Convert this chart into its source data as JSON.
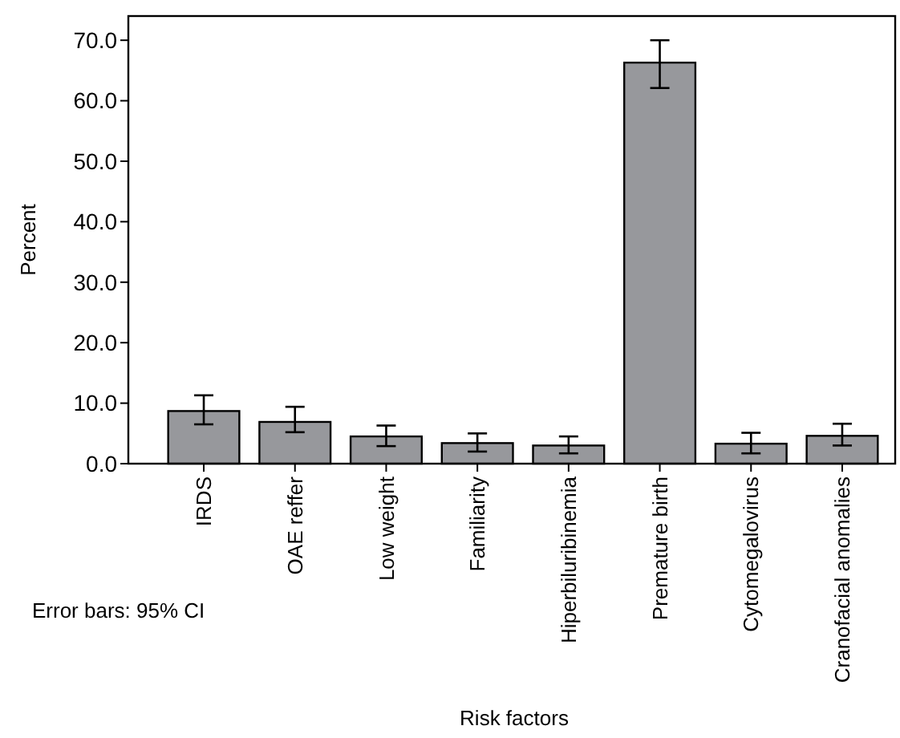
{
  "chart_data": {
    "type": "bar",
    "xlabel": "Risk factors",
    "ylabel": "Percent",
    "categories": [
      "IRDS",
      "OAE reffer",
      "Low weight",
      "Familiarity",
      "Hiperbiluribinemia",
      "Premature birth",
      "Cytomegalovirus",
      "Cranofacial anomalies"
    ],
    "values": [
      8.7,
      6.9,
      4.5,
      3.4,
      3.0,
      66.3,
      3.3,
      4.6
    ],
    "errors": [
      [
        6.5,
        11.3
      ],
      [
        5.2,
        9.4
      ],
      [
        2.9,
        6.3
      ],
      [
        2.0,
        5.0
      ],
      [
        1.7,
        4.5
      ],
      [
        62.1,
        70.0
      ],
      [
        1.7,
        5.1
      ],
      [
        3.0,
        6.6
      ]
    ],
    "color": "#97989c",
    "ylim": [
      0,
      74
    ],
    "yticks": [
      {
        "value": 0,
        "label": "0.0"
      },
      {
        "value": 10,
        "label": "10.0"
      },
      {
        "value": 20,
        "label": "20.0"
      },
      {
        "value": 30,
        "label": "30.0"
      },
      {
        "value": 40,
        "label": "40.0"
      },
      {
        "value": 50,
        "label": "50.0"
      },
      {
        "value": 60,
        "label": "60.0"
      },
      {
        "value": 70,
        "label": "70.0"
      }
    ],
    "grid": false,
    "annotations": [
      "Error bars: 95% CI"
    ]
  }
}
